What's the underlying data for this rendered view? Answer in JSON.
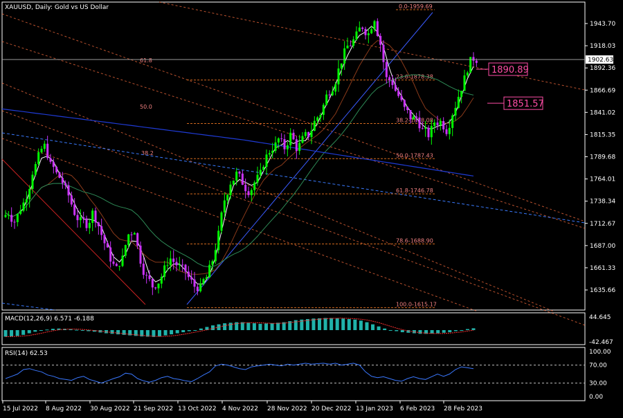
{
  "header": {
    "title": "XAUUSD, Daily:  Gold vs US Dollar"
  },
  "current_price": "1902.63",
  "callouts": [
    {
      "label": "1890.89",
      "price": 1890.89
    },
    {
      "label": "1851.57",
      "price": 1851.57
    }
  ],
  "colors": {
    "background": "#000000",
    "axis_text": "#ffffff",
    "bull_candle": "#00ff00",
    "bear_candle": "#cc33ff",
    "fib_line": "#d2691e",
    "sma_fast": "#ffffff",
    "ma_mid": "#8b3a1a",
    "ma_slow": "#2e8b57",
    "ma_long": "#1f3bd6",
    "trend_dash": "#e8663a",
    "rsi_line": "#3a78ff",
    "macd_hist": "#20b2aa",
    "callout": "#ff4da6"
  },
  "chart_data": [
    {
      "type": "candlestick",
      "title": "XAUUSD, Daily:  Gold vs US Dollar",
      "ylim": [
        1610,
        1975
      ],
      "y_ticks": [
        "1943.70",
        "1918.03",
        "1892.36",
        "1866.69",
        "1841.02",
        "1815.35",
        "1789.68",
        "1764.01",
        "1738.34",
        "1712.67",
        "1687.00",
        "1661.33",
        "1635.66"
      ],
      "x_ticks": [
        "15 Jul 2022",
        "8 Aug 2022",
        "30 Aug 2022",
        "21 Sep 2022",
        "13 Oct 2022",
        "4 Nov 2022",
        "28 Nov 2022",
        "20 Dec 2022",
        "13 Jan 2023",
        "6 Feb 2023",
        "28 Feb 2023"
      ],
      "close_path": [
        1725,
        1715,
        1730,
        1745,
        1772,
        1790,
        1802,
        1780,
        1770,
        1760,
        1745,
        1725,
        1715,
        1712,
        1725,
        1710,
        1690,
        1672,
        1660,
        1672,
        1700,
        1705,
        1670,
        1650,
        1640,
        1645,
        1660,
        1672,
        1665,
        1660,
        1650,
        1640,
        1638,
        1650,
        1670,
        1700,
        1740,
        1760,
        1770,
        1760,
        1750,
        1760,
        1770,
        1790,
        1800,
        1810,
        1800,
        1815,
        1800,
        1810,
        1815,
        1830,
        1840,
        1860,
        1870,
        1890,
        1910,
        1920,
        1930,
        1940,
        1932,
        1950,
        1920,
        1880,
        1875,
        1860,
        1845,
        1835,
        1835,
        1820,
        1815,
        1830,
        1830,
        1820,
        1840,
        1860,
        1880,
        1900,
        1902
      ],
      "fib_levels": [
        {
          "label": "0.0-1959.69",
          "price": 1959.69
        },
        {
          "label": "23.6-1878.38",
          "price": 1878.38
        },
        {
          "label": "38.2-1828.08",
          "price": 1828.08
        },
        {
          "label": "50.0-1787.43",
          "price": 1787.43
        },
        {
          "label": "61.8-1746.78",
          "price": 1746.78
        },
        {
          "label": "78.6-1688.90",
          "price": 1688.9
        },
        {
          "label": "100.0-1615.17",
          "price": 1615.17
        }
      ],
      "fan_labels": [
        "61.8",
        "50.0",
        "38.2"
      ]
    },
    {
      "type": "bar",
      "title": "MACD(12,26,9) 6.571 -6.188",
      "y_ticks": [
        "44.645",
        "-42.467"
      ],
      "ylim": [
        -50,
        50
      ],
      "values": [
        -25,
        -24,
        -22,
        -18,
        -12,
        -6,
        -2,
        2,
        5,
        6,
        5,
        3,
        1,
        -2,
        -4,
        -6,
        -9,
        -12,
        -14,
        -16,
        -18,
        -20,
        -22,
        -24,
        -25,
        -26,
        -24,
        -20,
        -16,
        -12,
        -8,
        -4,
        0,
        6,
        12,
        18,
        22,
        26,
        28,
        30,
        30,
        28,
        26,
        24,
        25,
        26,
        28,
        30,
        34,
        38,
        40,
        42,
        44,
        45,
        46,
        46,
        45,
        44,
        42,
        40,
        36,
        30,
        22,
        14,
        6,
        0,
        -4,
        -8,
        -10,
        -12,
        -14,
        -14,
        -13,
        -12,
        -10,
        -8,
        -4,
        0,
        4,
        7
      ]
    },
    {
      "type": "line",
      "title": "RSI(14) 62.53",
      "y_ticks": [
        "100.00",
        "70.00",
        "30.00",
        "0.00"
      ],
      "levels": [
        70,
        30
      ],
      "ylim": [
        0,
        100
      ],
      "values": [
        40,
        45,
        50,
        60,
        62,
        58,
        55,
        48,
        45,
        40,
        38,
        36,
        42,
        45,
        38,
        34,
        30,
        35,
        40,
        44,
        52,
        50,
        40,
        35,
        32,
        36,
        42,
        45,
        40,
        38,
        35,
        33,
        40,
        48,
        55,
        68,
        72,
        70,
        66,
        62,
        60,
        66,
        68,
        70,
        72,
        70,
        68,
        72,
        70,
        72,
        74,
        72,
        73,
        74,
        72,
        74,
        70,
        72,
        74,
        70,
        55,
        45,
        42,
        44,
        40,
        36,
        34,
        40,
        44,
        40,
        38,
        44,
        50,
        45,
        50,
        60,
        66,
        64,
        62
      ]
    }
  ]
}
